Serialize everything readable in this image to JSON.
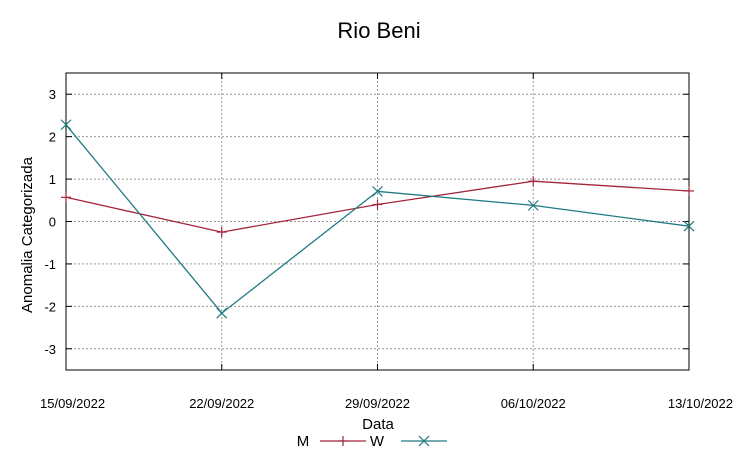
{
  "chart_data": {
    "type": "line",
    "title": "Rio Beni",
    "xlabel": "Data",
    "ylabel": "Anomalia Categorizada",
    "x": [
      "15/09/2022",
      "22/09/2022",
      "29/09/2022",
      "06/10/2022",
      "13/10/2022"
    ],
    "x_tick_labels": [
      "15/09/2022",
      "22/09/2022",
      "29/09/2022",
      "06/10/2022",
      "13/10/2022"
    ],
    "y_ticks": [
      3,
      2,
      1,
      0,
      -1,
      -2,
      -3
    ],
    "y_tick_labels": [
      "3",
      "2",
      "1",
      "0",
      "-1",
      "-2",
      "-3"
    ],
    "ylim": [
      -3.5,
      3.5
    ],
    "grid": true,
    "legend_position": "bottom-center",
    "series": [
      {
        "name": "M",
        "color": "#a3263c",
        "marker": "plus",
        "values": [
          0.57,
          -0.25,
          0.4,
          0.95,
          0.72
        ]
      },
      {
        "name": "W",
        "color": "#1f7a82",
        "marker": "cross",
        "values": [
          2.28,
          -2.16,
          0.71,
          0.38,
          -0.11
        ]
      }
    ]
  }
}
